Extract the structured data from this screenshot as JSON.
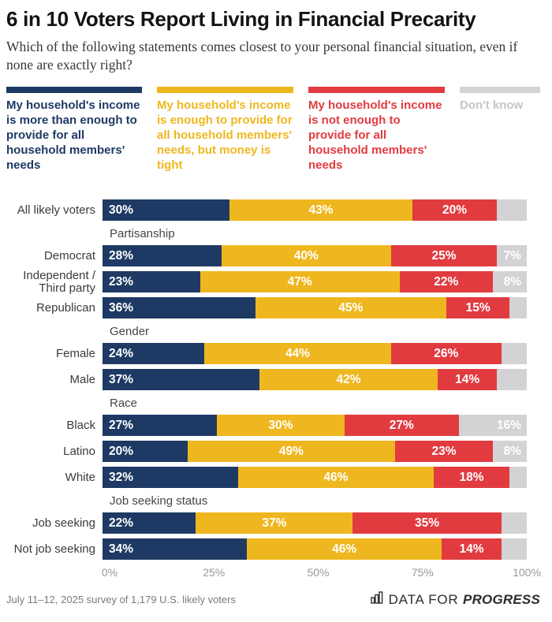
{
  "header": {
    "title": "6 in 10 Voters Report Living in Financial Precarity",
    "subtitle": "Which of the following statements comes closest to your personal financial situation, even if none are exactly right?"
  },
  "colors": {
    "navy": "#1e3a64",
    "yellow": "#efb71f",
    "red": "#e13b40",
    "gray": "#d3d2d4",
    "gray_text": "#c5c5c7"
  },
  "legend": [
    {
      "key": "navy",
      "label": "My household's income is more than enough to provide for all household members' needs"
    },
    {
      "key": "yellow",
      "label": "My household's income is enough to provide for all household members' needs, but money is tight"
    },
    {
      "key": "red",
      "label": "My household's income is not enough to provide for all household members' needs"
    },
    {
      "key": "gray",
      "label": "Don't know"
    }
  ],
  "chart_data": {
    "type": "bar",
    "stacked": true,
    "orientation": "horizontal",
    "x_range": [
      0,
      100
    ],
    "x_ticks": [
      "0%",
      "25%",
      "50%",
      "75%",
      "100%"
    ],
    "series_names": [
      "My household's income is more than enough to provide for all household members' needs",
      "My household's income is enough to provide for all household members' needs, but money is tight",
      "My household's income is not enough to provide for all household members' needs",
      "Don't know"
    ],
    "sections": [
      {
        "header": "",
        "rows": [
          {
            "label": "All likely voters",
            "values": [
              30,
              43,
              20,
              7
            ],
            "shown_labels": [
              "30%",
              "43%",
              "20%",
              ""
            ]
          }
        ]
      },
      {
        "header": "Partisanship",
        "rows": [
          {
            "label": "Democrat",
            "values": [
              28,
              40,
              25,
              7
            ],
            "shown_labels": [
              "28%",
              "40%",
              "25%",
              "7%"
            ]
          },
          {
            "label": "Independent / Third party",
            "values": [
              23,
              47,
              22,
              8
            ],
            "shown_labels": [
              "23%",
              "47%",
              "22%",
              "8%"
            ]
          },
          {
            "label": "Republican",
            "values": [
              36,
              45,
              15,
              4
            ],
            "shown_labels": [
              "36%",
              "45%",
              "15%",
              ""
            ]
          }
        ]
      },
      {
        "header": "Gender",
        "rows": [
          {
            "label": "Female",
            "values": [
              24,
              44,
              26,
              6
            ],
            "shown_labels": [
              "24%",
              "44%",
              "26%",
              ""
            ]
          },
          {
            "label": "Male",
            "values": [
              37,
              42,
              14,
              7
            ],
            "shown_labels": [
              "37%",
              "42%",
              "14%",
              ""
            ]
          }
        ]
      },
      {
        "header": "Race",
        "rows": [
          {
            "label": "Black",
            "values": [
              27,
              30,
              27,
              16
            ],
            "shown_labels": [
              "27%",
              "30%",
              "27%",
              "16%"
            ]
          },
          {
            "label": "Latino",
            "values": [
              20,
              49,
              23,
              8
            ],
            "shown_labels": [
              "20%",
              "49%",
              "23%",
              "8%"
            ]
          },
          {
            "label": "White",
            "values": [
              32,
              46,
              18,
              4
            ],
            "shown_labels": [
              "32%",
              "46%",
              "18%",
              ""
            ]
          }
        ]
      },
      {
        "header": "Job seeking status",
        "rows": [
          {
            "label": "Job seeking",
            "values": [
              22,
              37,
              35,
              6
            ],
            "shown_labels": [
              "22%",
              "37%",
              "35%",
              ""
            ]
          },
          {
            "label": "Not job seeking",
            "values": [
              34,
              46,
              14,
              6
            ],
            "shown_labels": [
              "34%",
              "46%",
              "14%",
              ""
            ]
          }
        ]
      }
    ]
  },
  "footer": {
    "source": "July 11–12, 2025 survey of 1,179 U.S. likely voters",
    "brand_prefix": "DATA FOR ",
    "brand_suffix": "PROGRESS"
  }
}
